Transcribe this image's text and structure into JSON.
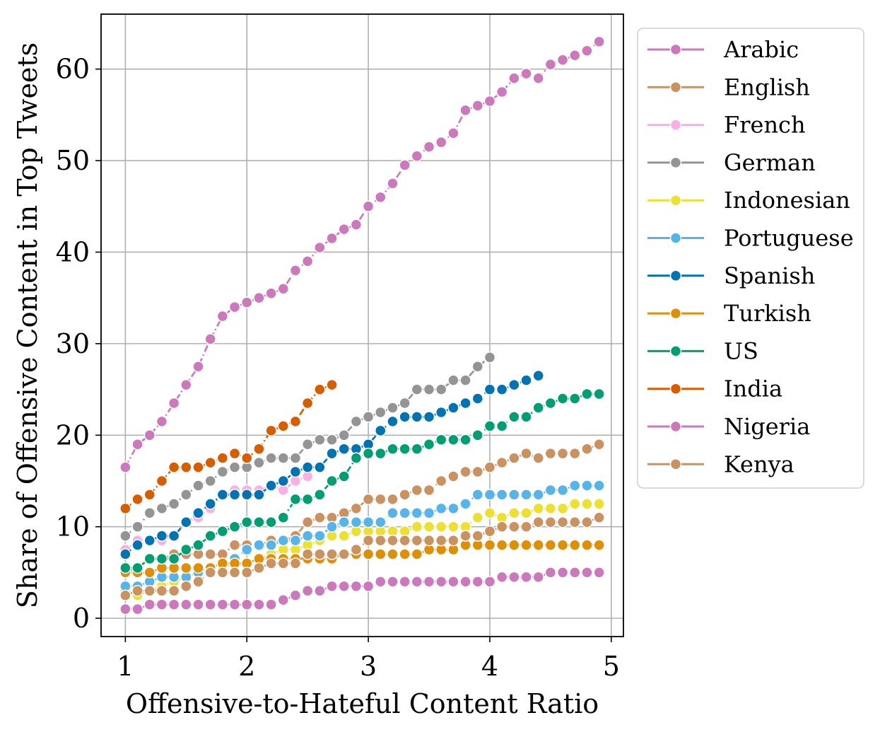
{
  "chart_data": {
    "type": "line",
    "title": "",
    "xlabel": "Offensive-to-Hateful Content Ratio",
    "ylabel": "Share of Offensive Content in Top Tweets",
    "xlim": [
      0.8,
      5.1
    ],
    "ylim": [
      -2,
      66
    ],
    "x_ticks": [
      1,
      2,
      3,
      4,
      5
    ],
    "y_ticks": [
      0,
      10,
      20,
      30,
      40,
      50,
      60
    ],
    "grid": true,
    "legend_position": "outside-right-top",
    "series": [
      {
        "name": "Arabic",
        "color": "#cc78bc",
        "dash": "dashdot",
        "x": [
          1.0,
          1.1,
          1.2,
          1.3,
          1.4,
          1.5,
          1.6,
          1.7,
          1.8,
          1.9,
          2.0,
          2.1,
          2.2,
          2.3,
          2.4,
          2.5,
          2.6,
          2.7,
          2.8,
          2.9,
          3.0,
          3.1,
          3.2,
          3.3,
          3.4,
          3.5,
          3.6,
          3.7,
          3.8,
          3.9,
          4.0,
          4.1,
          4.2,
          4.3,
          4.4,
          4.5,
          4.6,
          4.7,
          4.8,
          4.9
        ],
        "y": [
          16.5,
          19,
          20,
          21.5,
          23.5,
          25.5,
          27.5,
          30.5,
          33,
          34,
          34.5,
          35,
          35.5,
          36,
          38,
          39,
          40.5,
          41.5,
          42.5,
          43,
          45,
          46,
          47.5,
          49.5,
          50.5,
          51.5,
          52,
          53,
          55.5,
          56,
          56.5,
          57.5,
          59,
          59.5,
          59,
          60.5,
          61,
          61.5,
          62,
          63
        ]
      },
      {
        "name": "English",
        "color": "#ca9161",
        "dash": "dashdot",
        "x": [
          1.0,
          1.1,
          1.2,
          1.3,
          1.4,
          1.5,
          1.6,
          1.7,
          1.8,
          1.9,
          2.0,
          2.1,
          2.2,
          2.3,
          2.4,
          2.5,
          2.6,
          2.7,
          2.8,
          2.9,
          3.0,
          3.1,
          3.2,
          3.3,
          3.4,
          3.5,
          3.6,
          3.7,
          3.8,
          3.9,
          4.0,
          4.1,
          4.2,
          4.3,
          4.4,
          4.5,
          4.6,
          4.7,
          4.8,
          4.9
        ],
        "y": [
          5,
          5.5,
          6.5,
          6.5,
          7,
          7,
          7,
          7,
          7,
          8,
          8,
          8,
          8.5,
          8.5,
          9,
          10.5,
          11,
          11,
          11.5,
          12,
          13,
          13,
          13,
          13.5,
          14,
          14,
          15,
          15.5,
          16,
          16,
          16.5,
          17,
          17.5,
          18,
          17.5,
          18,
          18,
          18,
          18.5,
          19
        ]
      },
      {
        "name": "French",
        "color": "#fbafe4",
        "dash": "dashdot",
        "x": [
          1.0,
          1.1,
          1.2,
          1.3,
          1.4,
          1.5,
          1.6,
          1.7,
          1.8,
          1.9,
          2.0,
          2.1,
          2.2,
          2.3,
          2.4,
          2.5
        ],
        "y": [
          7.5,
          8.5,
          8.5,
          8.5,
          9,
          10.5,
          11,
          12,
          13.5,
          14,
          14,
          14,
          14.5,
          14,
          15,
          15.5
        ]
      },
      {
        "name": "German",
        "color": "#949494",
        "dash": "dashdot",
        "x": [
          1.0,
          1.1,
          1.2,
          1.3,
          1.4,
          1.5,
          1.6,
          1.7,
          1.8,
          1.9,
          2.0,
          2.1,
          2.2,
          2.3,
          2.4,
          2.5,
          2.6,
          2.7,
          2.8,
          2.9,
          3.0,
          3.1,
          3.2,
          3.3,
          3.4,
          3.5,
          3.6,
          3.7,
          3.8,
          3.9,
          4.0
        ],
        "y": [
          9,
          10,
          11.5,
          12,
          12.5,
          13.5,
          14.5,
          15,
          16,
          16.5,
          16.5,
          17,
          17.5,
          17.5,
          17.5,
          19,
          19.5,
          19.5,
          20,
          21.5,
          22,
          22.5,
          23,
          23.5,
          25,
          25,
          25,
          26,
          26,
          27.5,
          28.5
        ]
      },
      {
        "name": "Indonesian",
        "color": "#ece133",
        "dash": "dashdot",
        "x": [
          1.0,
          1.1,
          1.2,
          1.3,
          1.4,
          1.5,
          1.6,
          1.7,
          1.8,
          1.9,
          2.0,
          2.1,
          2.2,
          2.3,
          2.4,
          2.5,
          2.6,
          2.7,
          2.8,
          2.9,
          3.0,
          3.1,
          3.2,
          3.3,
          3.4,
          3.5,
          3.6,
          3.7,
          3.8,
          3.9,
          4.0,
          4.1,
          4.2,
          4.3,
          4.4,
          4.5,
          4.6,
          4.7,
          4.8,
          4.9
        ],
        "y": [
          3,
          2.5,
          3,
          3.5,
          4,
          4.5,
          5,
          5,
          5.5,
          6,
          6,
          6.5,
          7,
          7.5,
          7.5,
          8,
          8.5,
          9,
          9,
          9.5,
          9.5,
          9.5,
          9.5,
          9.5,
          10,
          10,
          10,
          10,
          10,
          11,
          11.5,
          11,
          11.5,
          11.5,
          12,
          12,
          12,
          12.5,
          12.5,
          12.5
        ]
      },
      {
        "name": "Portuguese",
        "color": "#56b4e9",
        "dash": "dashdot",
        "x": [
          1.0,
          1.1,
          1.2,
          1.3,
          1.4,
          1.5,
          1.6,
          1.7,
          1.8,
          1.9,
          2.0,
          2.1,
          2.2,
          2.3,
          2.4,
          2.5,
          2.6,
          2.7,
          2.8,
          2.9,
          3.0,
          3.1,
          3.2,
          3.3,
          3.4,
          3.5,
          3.6,
          3.7,
          3.8,
          3.9,
          4.0,
          4.1,
          4.2,
          4.3,
          4.4,
          4.5,
          4.6,
          4.7,
          4.8,
          4.9
        ],
        "y": [
          3.5,
          3.5,
          4,
          4.5,
          4.5,
          4.5,
          5,
          5.5,
          6,
          6.5,
          7.5,
          8,
          8,
          8.5,
          8.5,
          9,
          9,
          10,
          10.5,
          10.5,
          10.5,
          10.5,
          11.5,
          11.5,
          11.5,
          11.5,
          12,
          12,
          12.5,
          13.5,
          13.5,
          13.5,
          13.5,
          13.5,
          13.5,
          14,
          14,
          14.5,
          14.5,
          14.5
        ]
      },
      {
        "name": "Spanish",
        "color": "#0173b2",
        "dash": "dashdot",
        "x": [
          1.0,
          1.1,
          1.2,
          1.3,
          1.4,
          1.5,
          1.6,
          1.7,
          1.8,
          1.9,
          2.0,
          2.1,
          2.2,
          2.3,
          2.4,
          2.5,
          2.6,
          2.7,
          2.8,
          2.9,
          3.0,
          3.1,
          3.2,
          3.3,
          3.4,
          3.5,
          3.6,
          3.7,
          3.8,
          3.9,
          4.0,
          4.1,
          4.2,
          4.3,
          4.4
        ],
        "y": [
          7,
          8,
          8.5,
          9,
          9,
          10.5,
          11.5,
          12.5,
          13.5,
          13.5,
          13.5,
          13.5,
          14.5,
          15,
          16,
          16.5,
          16.5,
          18,
          18.5,
          18.5,
          19,
          20.5,
          21.5,
          22,
          22,
          22,
          22.5,
          23,
          23.5,
          24,
          25,
          25,
          25.5,
          26,
          26.5
        ]
      },
      {
        "name": "Turkish",
        "color": "#de8f05",
        "dash": "dashdot",
        "x": [
          1.0,
          1.1,
          1.2,
          1.3,
          1.4,
          1.5,
          1.6,
          1.7,
          1.8,
          1.9,
          2.0,
          2.1,
          2.2,
          2.3,
          2.4,
          2.5,
          2.6,
          2.7,
          2.8,
          2.9,
          3.0,
          3.1,
          3.2,
          3.3,
          3.4,
          3.5,
          3.6,
          3.7,
          3.8,
          3.9,
          4.0,
          4.1,
          4.2,
          4.3,
          4.4,
          4.5,
          4.6,
          4.7,
          4.8,
          4.9
        ],
        "y": [
          5,
          5,
          5,
          5.5,
          5.5,
          5.5,
          5.5,
          5.5,
          6,
          6,
          6,
          6.5,
          6.5,
          6.5,
          6.5,
          6.5,
          6.5,
          6.5,
          7,
          7,
          7,
          7,
          7,
          7,
          7,
          7.5,
          7.5,
          7.5,
          8,
          8,
          8,
          8,
          8,
          8,
          8,
          8,
          8,
          8,
          8,
          8
        ]
      },
      {
        "name": "US",
        "color": "#029e73",
        "dash": "dashdot",
        "x": [
          1.0,
          1.1,
          1.2,
          1.3,
          1.4,
          1.5,
          1.6,
          1.7,
          1.8,
          1.9,
          2.0,
          2.1,
          2.2,
          2.3,
          2.4,
          2.5,
          2.6,
          2.7,
          2.8,
          2.9,
          3.0,
          3.1,
          3.2,
          3.3,
          3.4,
          3.5,
          3.6,
          3.7,
          3.8,
          3.9,
          4.0,
          4.1,
          4.2,
          4.3,
          4.4,
          4.5,
          4.6,
          4.7,
          4.8,
          4.9
        ],
        "y": [
          5.5,
          5.5,
          6.5,
          6.5,
          6.5,
          7.5,
          8,
          9,
          9.5,
          10,
          10.5,
          10.5,
          10.5,
          11,
          13,
          13,
          13.5,
          15,
          15.5,
          17.5,
          18,
          18,
          18.5,
          18.5,
          18.5,
          19,
          19.5,
          19.5,
          19.5,
          20,
          21,
          21,
          22,
          22,
          23,
          23.5,
          24,
          24,
          24.5,
          24.5
        ]
      },
      {
        "name": "India",
        "color": "#d55e00",
        "dash": "dashdot",
        "x": [
          1.0,
          1.1,
          1.2,
          1.3,
          1.4,
          1.5,
          1.6,
          1.7,
          1.8,
          1.9,
          2.0,
          2.1,
          2.2,
          2.3,
          2.4,
          2.5,
          2.6,
          2.7
        ],
        "y": [
          12,
          13,
          13.5,
          15,
          16.5,
          16.5,
          16.5,
          17,
          17.5,
          18,
          17.5,
          18.5,
          20.5,
          21,
          21.5,
          23.5,
          25,
          25.5
        ]
      },
      {
        "name": "Nigeria",
        "color": "#cc78bc",
        "dash": "dashdot",
        "x": [
          1.0,
          1.1,
          1.2,
          1.3,
          1.4,
          1.5,
          1.6,
          1.7,
          1.8,
          1.9,
          2.0,
          2.1,
          2.2,
          2.3,
          2.4,
          2.5,
          2.6,
          2.7,
          2.8,
          2.9,
          3.0,
          3.1,
          3.2,
          3.3,
          3.4,
          3.5,
          3.6,
          3.7,
          3.8,
          3.9,
          4.0,
          4.1,
          4.2,
          4.3,
          4.4,
          4.5,
          4.6,
          4.7,
          4.8,
          4.9
        ],
        "y": [
          1,
          1,
          1.5,
          1.5,
          1.5,
          1.5,
          1.5,
          1.5,
          1.5,
          1.5,
          1.5,
          1.5,
          1.5,
          2,
          2.5,
          3,
          3,
          3.5,
          3.5,
          3.5,
          3.5,
          4,
          4,
          4,
          4,
          4,
          4,
          4,
          4,
          4,
          4,
          4.5,
          4.5,
          4.5,
          4.5,
          5,
          5,
          5,
          5,
          5
        ]
      },
      {
        "name": "Kenya",
        "color": "#ca9161",
        "dash": "dashdot",
        "x": [
          1.0,
          1.1,
          1.2,
          1.3,
          1.4,
          1.5,
          1.6,
          1.7,
          1.8,
          1.9,
          2.0,
          2.1,
          2.2,
          2.3,
          2.4,
          2.5,
          2.6,
          2.7,
          2.8,
          2.9,
          3.0,
          3.1,
          3.2,
          3.3,
          3.4,
          3.5,
          3.6,
          3.7,
          3.8,
          3.9,
          4.0,
          4.1,
          4.2,
          4.3,
          4.4,
          4.5,
          4.6,
          4.7,
          4.8,
          4.9
        ],
        "y": [
          2.5,
          3,
          3,
          3,
          3,
          3.5,
          4,
          5,
          5,
          5,
          5,
          5.5,
          6,
          6,
          6,
          7,
          7,
          7,
          7,
          7.5,
          8.5,
          8.5,
          8.5,
          8.5,
          8.5,
          8.5,
          8.5,
          8.5,
          9,
          9,
          9.5,
          10,
          10,
          10,
          10.5,
          10.5,
          10.5,
          10.5,
          10.5,
          11
        ]
      }
    ]
  }
}
